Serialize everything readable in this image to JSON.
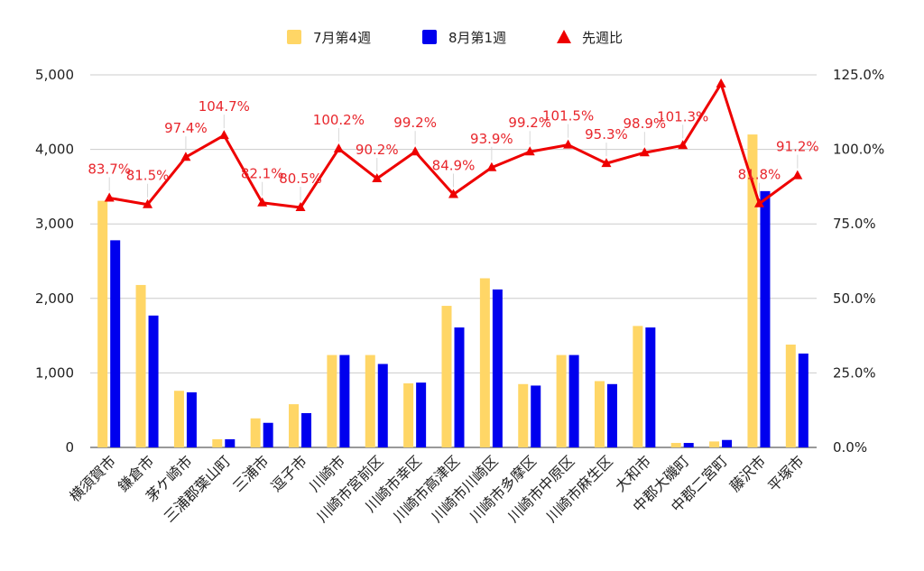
{
  "chart_data": {
    "type": "bar",
    "categories": [
      "横須賀市",
      "鎌倉市",
      "茅ケ崎市",
      "三浦郡葉山町",
      "三浦市",
      "逗子市",
      "川崎市",
      "川崎市宮前区",
      "川崎市幸区",
      "川崎市高津区",
      "川崎市川崎区",
      "川崎市多摩区",
      "川崎市中原区",
      "川崎市麻生区",
      "大和市",
      "中郡大磯町",
      "中郡二宮町",
      "藤沢市",
      "平塚市"
    ],
    "series": [
      {
        "name": "7月第4週",
        "type": "bar",
        "axis": "left",
        "color": "#ffd666",
        "values": [
          3310,
          2180,
          760,
          110,
          390,
          580,
          1240,
          1240,
          860,
          1900,
          2270,
          850,
          1240,
          890,
          1630,
          60,
          80,
          4200,
          1380
        ]
      },
      {
        "name": "8月第1週",
        "type": "bar",
        "axis": "left",
        "color": "#0000ee",
        "values": [
          2780,
          1770,
          740,
          110,
          330,
          460,
          1240,
          1120,
          870,
          1610,
          2120,
          830,
          1240,
          850,
          1610,
          60,
          100,
          3440,
          1260
        ]
      },
      {
        "name": "先週比",
        "type": "line",
        "axis": "right",
        "color": "#ee0000",
        "values": [
          83.7,
          81.5,
          97.4,
          104.7,
          82.1,
          80.5,
          100.2,
          90.2,
          99.2,
          84.9,
          93.9,
          99.2,
          101.5,
          95.3,
          98.9,
          101.3,
          122.0,
          81.8,
          91.2
        ],
        "labels": [
          "83.7%",
          "81.5%",
          "97.4%",
          "104.7%",
          "82.1%",
          "80.5%",
          "100.2%",
          "90.2%",
          "99.2%",
          "84.9%",
          "93.9%",
          "99.2%",
          "101.5%",
          "95.3%",
          "98.9%",
          "101.3%",
          "",
          "81.8%",
          "91.2%"
        ]
      }
    ],
    "y_left": {
      "min": 0,
      "max": 5000,
      "ticks": [
        "0",
        "1,000",
        "2,000",
        "3,000",
        "4,000",
        "5,000"
      ]
    },
    "y_right": {
      "min": 0,
      "max": 125,
      "ticks": [
        "0.0%",
        "25.0%",
        "50.0%",
        "75.0%",
        "100.0%",
        "125.0%"
      ]
    },
    "grid": true,
    "legend_position": "top-center"
  }
}
